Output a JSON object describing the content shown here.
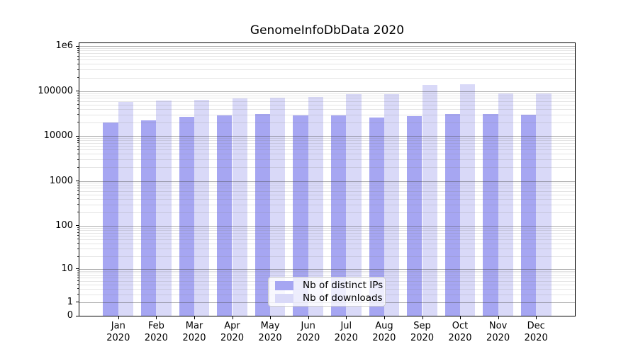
{
  "chart_data": {
    "type": "bar",
    "title": "GenomeInfoDbData 2020",
    "categories": [
      "Jan",
      "Feb",
      "Mar",
      "Apr",
      "May",
      "Jun",
      "Jul",
      "Aug",
      "Sep",
      "Oct",
      "Nov",
      "Dec"
    ],
    "x_year_label": "2020",
    "series": [
      {
        "name": "Nb of distinct IPs",
        "color": "#a6a6f2",
        "values": [
          19800,
          22400,
          26500,
          28400,
          31200,
          28700,
          28400,
          25900,
          27500,
          31300,
          31300,
          29500
        ]
      },
      {
        "name": "Nb of downloads",
        "color": "#d9d9f8",
        "values": [
          57500,
          60800,
          63000,
          67500,
          72000,
          75000,
          85700,
          86500,
          135000,
          142000,
          89600,
          87400
        ]
      }
    ],
    "yscale": "log1p",
    "ylim": [
      0,
      1160000
    ],
    "yticks": [
      {
        "v": 0,
        "label": "0"
      },
      {
        "v": 1,
        "label": "1"
      },
      {
        "v": 10,
        "label": "10"
      },
      {
        "v": 100,
        "label": "100"
      },
      {
        "v": 1000,
        "label": "1000"
      },
      {
        "v": 10000,
        "label": "10000"
      },
      {
        "v": 100000,
        "label": "100000"
      },
      {
        "v": 1000000,
        "label": "1e6"
      }
    ],
    "grid": {
      "major": true,
      "minor": true,
      "drawn_over_bars": true
    },
    "legend_position": "lower center"
  }
}
